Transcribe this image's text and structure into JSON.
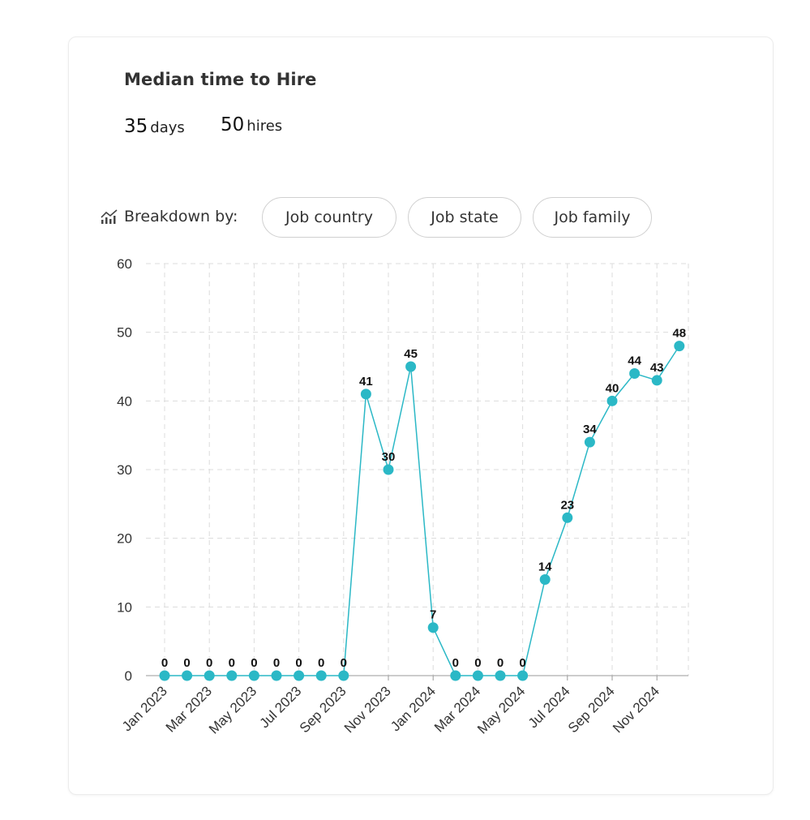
{
  "title": "Median time to Hire",
  "stats": {
    "median_value": "35",
    "median_unit": "days",
    "hires_value": "50",
    "hires_unit": "hires"
  },
  "breakdown": {
    "label": "Breakdown by:",
    "icon": "chart-analytics-icon",
    "chips": [
      "Job country",
      "Job state",
      "Job family"
    ]
  },
  "colors": {
    "line": "#2bb8c6",
    "grid": "#dcdcdc",
    "axis": "#999999"
  },
  "chart_data": {
    "type": "line",
    "x": [
      "Jan 2023",
      "Feb 2023",
      "Mar 2023",
      "Apr 2023",
      "May 2023",
      "Jun 2023",
      "Jul 2023",
      "Aug 2023",
      "Sep 2023",
      "Oct 2023",
      "Nov 2023",
      "Dec 2023",
      "Jan 2024",
      "Feb 2024",
      "Mar 2024",
      "Apr 2024",
      "May 2024",
      "Jun 2024",
      "Jul 2024",
      "Aug 2024",
      "Sep 2024",
      "Oct 2024",
      "Nov 2024",
      "Dec 2024"
    ],
    "x_tick_labels": [
      "Jan 2023",
      "Mar 2023",
      "May 2023",
      "Jul 2023",
      "Sep 2023",
      "Nov 2023",
      "Jan 2024",
      "Mar 2024",
      "May 2024",
      "Jul 2024",
      "Sep 2024",
      "Nov 2024"
    ],
    "series": [
      {
        "values": [
          0,
          0,
          0,
          0,
          0,
          0,
          0,
          0,
          0,
          41,
          30,
          45,
          7,
          0,
          0,
          0,
          0,
          14,
          23,
          34,
          40,
          44,
          43,
          48
        ]
      }
    ],
    "ylim": [
      0,
      60
    ],
    "y_ticks": [
      0,
      10,
      20,
      30,
      40,
      50,
      60
    ],
    "grid": true,
    "data_labels": true
  }
}
